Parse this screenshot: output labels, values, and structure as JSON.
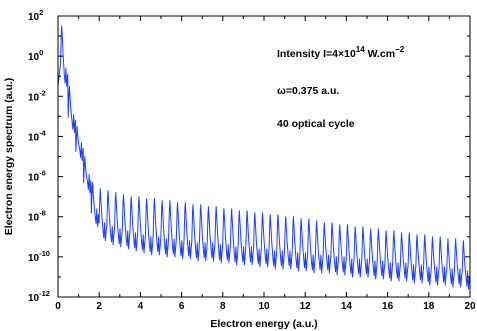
{
  "chart_data": {
    "type": "line",
    "title": "",
    "xlabel": "Electron energy (a.u.)",
    "ylabel": "Electron energy spectrum (a.u.)",
    "xlim": [
      0,
      20
    ],
    "ylim_log10": [
      -12,
      2
    ],
    "y_scale": "log",
    "grid": false,
    "x_ticks": [
      "0",
      "2",
      "4",
      "6",
      "8",
      "10",
      "12",
      "14",
      "16",
      "18",
      "20"
    ],
    "y_tick_base": "10",
    "y_tick_exponents": [
      "-12",
      "-10",
      "-8",
      "-6",
      "-4",
      "-2",
      "0",
      "2"
    ],
    "line_color": "#1f3fff",
    "annotations": {
      "intensity_prefix": "Intensity I=4×10",
      "intensity_exp": "14",
      "intensity_unit": " W.cm",
      "intensity_unit_exp": "−2",
      "omega": "ω=0.375 a.u.",
      "cycles": "40 optical cycle"
    },
    "series": [
      {
        "photon_energy": 0.375,
        "first_peak_x": 0.18,
        "peak_x": [
          0.18,
          0.555,
          0.93,
          1.305,
          1.68,
          2.055,
          2.43,
          2.805,
          3.18,
          3.555,
          3.93,
          4.305,
          4.68,
          5.055,
          5.43,
          5.805,
          6.18,
          6.555,
          6.93,
          7.305,
          7.68,
          8.055,
          8.43,
          8.805,
          9.18,
          9.555,
          9.93,
          10.305,
          10.68,
          11.055,
          11.43,
          11.805,
          12.18,
          12.555,
          12.93,
          13.305,
          13.68,
          14.055,
          14.43,
          14.805,
          15.18,
          15.555,
          15.93,
          16.305,
          16.68,
          17.055,
          17.43,
          17.805,
          18.18,
          18.555,
          18.93,
          19.305,
          19.68
        ],
        "peak_log10": [
          1.5,
          -1.5,
          -3.5,
          -5.0,
          -6.3,
          -6.6,
          -6.7,
          -6.8,
          -6.9,
          -7.0,
          -7.0,
          -7.1,
          -7.1,
          -7.2,
          -7.2,
          -7.3,
          -7.3,
          -7.4,
          -7.4,
          -7.5,
          -7.5,
          -7.6,
          -7.6,
          -7.7,
          -7.7,
          -7.8,
          -7.8,
          -7.9,
          -7.9,
          -8.0,
          -8.0,
          -8.1,
          -8.1,
          -8.2,
          -8.3,
          -8.3,
          -8.4,
          -8.4,
          -8.5,
          -8.5,
          -8.6,
          -8.6,
          -8.7,
          -8.7,
          -8.8,
          -8.8,
          -8.9,
          -8.9,
          -9.0,
          -9.0,
          -9.1,
          -9.1,
          -9.2
        ],
        "valley_log10": [
          -1.5,
          -3.8,
          -5.2,
          -6.8,
          -8.5,
          -9.2,
          -9.4,
          -9.5,
          -9.6,
          -9.7,
          -9.8,
          -9.9,
          -9.9,
          -10.0,
          -10.0,
          -10.1,
          -10.1,
          -10.2,
          -10.2,
          -10.2,
          -10.3,
          -10.3,
          -10.4,
          -10.4,
          -10.4,
          -10.5,
          -10.5,
          -10.6,
          -10.6,
          -10.6,
          -10.7,
          -10.7,
          -10.8,
          -10.8,
          -10.8,
          -10.9,
          -10.9,
          -11.0,
          -11.0,
          -11.0,
          -11.1,
          -11.1,
          -11.2,
          -11.2,
          -11.2,
          -11.3,
          -11.3,
          -11.4,
          -11.4,
          -11.4,
          -11.5,
          -11.5,
          -11.6
        ]
      }
    ]
  }
}
